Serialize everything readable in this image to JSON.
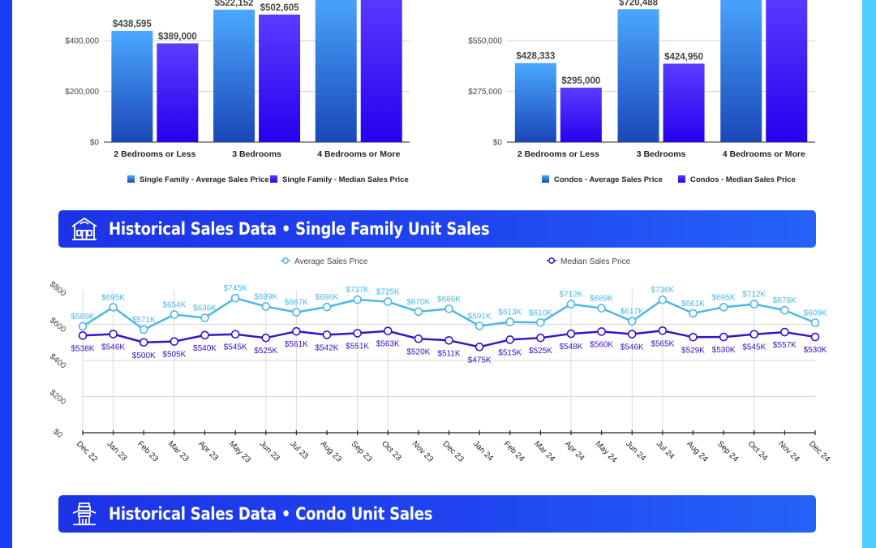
{
  "colors": {
    "side_left": "#1b3cf5",
    "side_right": "#4fcdfc",
    "avg_bar_top": "#4aa8ff",
    "avg_bar_bottom": "#1a47b8",
    "median_bar_top": "#5b3cff",
    "median_bar_bottom": "#2600ee",
    "avg_line": "#4db8e8",
    "median_line": "#3a12c8"
  },
  "banners": [
    {
      "title": "Historical Sales Data • Single Family Unit Sales",
      "icon": "house-icon"
    },
    {
      "title": "Historical Sales Data • Condo Unit Sales",
      "icon": "condo-building-icon"
    }
  ],
  "chart_data": [
    {
      "type": "bar",
      "title": "",
      "categories": [
        "2 Bedrooms or Less",
        "3 Bedrooms",
        "4 Bedrooms or More"
      ],
      "series": [
        {
          "name": "Single Family - Average Sales Price",
          "values": [
            438595,
            522152,
            null
          ],
          "labels": [
            "$438,595",
            "$522,152",
            ""
          ]
        },
        {
          "name": "Single Family - Median Sales Price",
          "values": [
            389000,
            502605,
            null
          ],
          "labels": [
            "$389,000",
            "$502,605",
            ""
          ]
        }
      ],
      "yticks": [
        0,
        200000,
        400000
      ],
      "ytick_labels": [
        "$0",
        "$200,000",
        "$400,000"
      ],
      "ylim": [
        0,
        560000
      ],
      "grid": true,
      "legend": "bottom",
      "note": "4 Bedrooms or More bars extend beyond the visible top edge; their values are not shown"
    },
    {
      "type": "bar",
      "title": "",
      "categories": [
        "2 Bedrooms or Less",
        "3 Bedrooms",
        "4 Bedrooms or More"
      ],
      "series": [
        {
          "name": "Condos - Average Sales Price",
          "values": [
            428333,
            720488,
            null
          ],
          "labels": [
            "$428,333",
            "$720,488",
            ""
          ]
        },
        {
          "name": "Condos - Median Sales Price",
          "values": [
            295000,
            424950,
            null
          ],
          "labels": [
            "$295,000",
            "$424,950",
            ""
          ]
        }
      ],
      "yticks": [
        0,
        275000,
        550000
      ],
      "ytick_labels": [
        "$0",
        "$275,000",
        "$550,000"
      ],
      "ylim": [
        0,
        770000
      ],
      "grid": true,
      "legend": "bottom",
      "note": "4 Bedrooms or More bars extend beyond the visible top edge; their values are not shown"
    },
    {
      "type": "line",
      "title": "Historical Sales Data • Single Family Unit Sales",
      "x": [
        "Dec 22",
        "Jan 23",
        "Feb 23",
        "Mar 23",
        "Apr 23",
        "May 23",
        "Jun 23",
        "Jul 23",
        "Aug 23",
        "Sep 23",
        "Oct 23",
        "Nov 23",
        "Dec 23",
        "Jan 24",
        "Feb 24",
        "Mar 24",
        "Apr 24",
        "May 24",
        "Jun 24",
        "Jul 24",
        "Aug 24",
        "Sep 24",
        "Oct 24",
        "Nov 24",
        "Dec 24"
      ],
      "series": [
        {
          "name": "Average Sales Price",
          "values": [
            589,
            695,
            571,
            654,
            636,
            745,
            699,
            667,
            696,
            737,
            725,
            670,
            686,
            591,
            613,
            610,
            712,
            689,
            617,
            736,
            661,
            695,
            712,
            678,
            609
          ]
        },
        {
          "name": "Median Sales Price",
          "values": [
            538,
            546,
            500,
            505,
            540,
            545,
            525,
            561,
            542,
            551,
            563,
            520,
            511,
            475,
            515,
            525,
            548,
            560,
            546,
            565,
            529,
            530,
            545,
            557,
            530
          ]
        }
      ],
      "value_label_format": "$%dK",
      "yticks": [
        0,
        200,
        400,
        600,
        800
      ],
      "ytick_labels": [
        "$0",
        "$200",
        "$400",
        "$600",
        "$800"
      ],
      "ylim": [
        0,
        800
      ],
      "xlabel": "",
      "ylabel": "",
      "grid": true,
      "legend": "top"
    }
  ]
}
